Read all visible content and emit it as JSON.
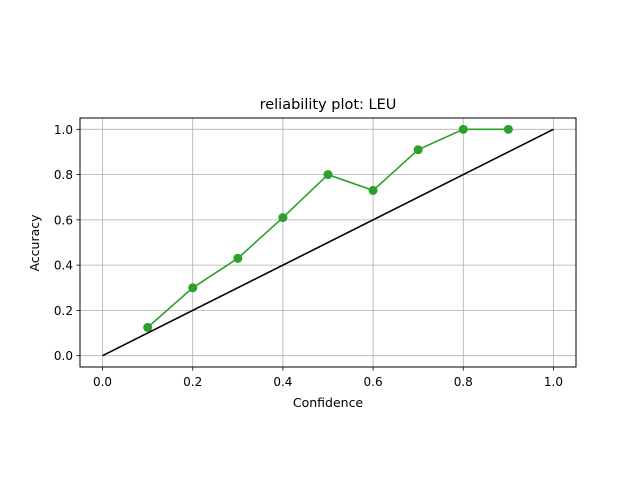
{
  "chart_data": {
    "type": "line",
    "title": "reliability plot: LEU",
    "xlabel": "Confidence",
    "ylabel": "Accuracy",
    "xlim": [
      -0.05,
      1.05
    ],
    "ylim": [
      -0.05,
      1.05
    ],
    "xticks": [
      0.0,
      0.2,
      0.4,
      0.6,
      0.8,
      1.0
    ],
    "yticks": [
      0.0,
      0.2,
      0.4,
      0.6,
      0.8,
      1.0
    ],
    "xtick_labels": [
      "0.0",
      "0.2",
      "0.4",
      "0.6",
      "0.8",
      "1.0"
    ],
    "ytick_labels": [
      "0.0",
      "0.2",
      "0.4",
      "0.6",
      "0.8",
      "1.0"
    ],
    "grid": true,
    "legend": "none",
    "series": [
      {
        "style": "line-with-markers",
        "color": "#2ca02c",
        "x": [
          0.1,
          0.2,
          0.3,
          0.4,
          0.5,
          0.6,
          0.7,
          0.8,
          0.9
        ],
        "y": [
          0.125,
          0.3,
          0.43,
          0.61,
          0.8,
          0.73,
          0.91,
          1.0,
          1.0
        ]
      },
      {
        "style": "line",
        "color": "#000000",
        "x": [
          0.0,
          1.0
        ],
        "y": [
          0.0,
          1.0
        ]
      }
    ]
  }
}
